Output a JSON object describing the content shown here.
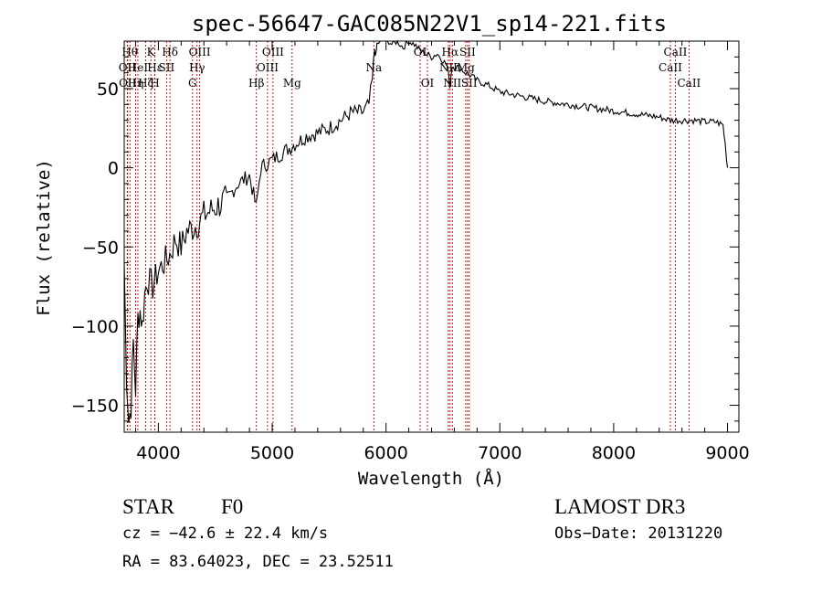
{
  "chart_data": {
    "type": "line",
    "title": "spec-56647-GAC085N22V1_sp14-221.fits",
    "xlabel": "Wavelength (Å)",
    "ylabel": "Flux (relative)",
    "xlim": [
      3700,
      9100
    ],
    "ylim": [
      -167,
      80
    ],
    "xticks": [
      4000,
      5000,
      6000,
      7000,
      8000,
      9000
    ],
    "xtick_labels": [
      "4000",
      "5000",
      "6000",
      "7000",
      "8000",
      "9000"
    ],
    "yticks": [
      -150,
      -100,
      -50,
      0,
      50
    ],
    "ytick_labels": [
      "−150",
      "−100",
      "−50",
      "0",
      "50"
    ],
    "series": [
      {
        "name": "spectrum",
        "x": [
          3700,
          3720,
          3740,
          3760,
          3780,
          3800,
          3820,
          3840,
          3860,
          3880,
          3900,
          3950,
          4000,
          4050,
          4100,
          4150,
          4200,
          4250,
          4300,
          4350,
          4400,
          4500,
          4600,
          4700,
          4800,
          4860,
          4900,
          5000,
          5100,
          5200,
          5300,
          5400,
          5500,
          5600,
          5700,
          5800,
          5850,
          5880,
          5900,
          5910,
          5920,
          5950,
          6000,
          6050,
          6100,
          6150,
          6200,
          6250,
          6300,
          6350,
          6400,
          6450,
          6500,
          6540,
          6560,
          6580,
          6600,
          6650,
          6700,
          6750,
          6800,
          6900,
          7000,
          7200,
          7400,
          7600,
          7800,
          8000,
          8200,
          8400,
          8500,
          8600,
          8700,
          8800,
          8900,
          8960,
          8980,
          9000
        ],
        "y": [
          -60,
          -130,
          -160,
          -150,
          -110,
          -140,
          -95,
          -90,
          -100,
          -80,
          -70,
          -75,
          -65,
          -60,
          -55,
          -45,
          -50,
          -40,
          -38,
          -35,
          -30,
          -25,
          -20,
          -10,
          -5,
          -25,
          0,
          5,
          10,
          15,
          20,
          22,
          25,
          30,
          35,
          35,
          40,
          55,
          75,
          70,
          78,
          80,
          82,
          78,
          80,
          76,
          80,
          78,
          74,
          72,
          70,
          72,
          68,
          64,
          52,
          64,
          64,
          63,
          60,
          58,
          55,
          52,
          48,
          45,
          42,
          40,
          38,
          36,
          34,
          32,
          30,
          30,
          30,
          29,
          29,
          27,
          15,
          0
        ]
      }
    ],
    "lines": [
      {
        "wl": 3727,
        "label": "OII",
        "row": 2
      },
      {
        "wl": 3730,
        "label": "OII",
        "row": 3
      },
      {
        "wl": 3750,
        "label": "Hθ",
        "row": 1
      },
      {
        "wl": 3800,
        "label": "Hη",
        "row": 3
      },
      {
        "wl": 3820,
        "label": "HeI",
        "row": 2
      },
      {
        "wl": 3889,
        "label": "Hζ",
        "row": 3
      },
      {
        "wl": 3934,
        "label": "K",
        "row": 1
      },
      {
        "wl": 3969,
        "label": "H",
        "row": 3
      },
      {
        "wl": 3970,
        "label": "Hε",
        "row": 2
      },
      {
        "wl": 4072,
        "label": "SII",
        "row": 2
      },
      {
        "wl": 4102,
        "label": "Hδ",
        "row": 1
      },
      {
        "wl": 4300,
        "label": "G",
        "row": 3
      },
      {
        "wl": 4340,
        "label": "Hγ",
        "row": 2
      },
      {
        "wl": 4363,
        "label": "OIII",
        "row": 1
      },
      {
        "wl": 4861,
        "label": "Hβ",
        "row": 3
      },
      {
        "wl": 4959,
        "label": "OIII",
        "row": 2
      },
      {
        "wl": 5007,
        "label": "OIII",
        "row": 1
      },
      {
        "wl": 5175,
        "label": "Mg",
        "row": 3
      },
      {
        "wl": 5893,
        "label": "Na",
        "row": 2
      },
      {
        "wl": 6300,
        "label": "OI",
        "row": 1
      },
      {
        "wl": 6364,
        "label": "OI",
        "row": 3
      },
      {
        "wl": 6548,
        "label": "NII",
        "row": 2
      },
      {
        "wl": 6563,
        "label": "Hα",
        "row": 1
      },
      {
        "wl": 6583,
        "label": "NII",
        "row": 3
      },
      {
        "wl": 6700,
        "label": "Mg",
        "row": 2
      },
      {
        "wl": 6716,
        "label": "SII",
        "row": 1
      },
      {
        "wl": 6731,
        "label": "SII",
        "row": 3
      },
      {
        "wl": 8498,
        "label": "CaII",
        "row": 2
      },
      {
        "wl": 8542,
        "label": "CaII",
        "row": 1
      },
      {
        "wl": 8662,
        "label": "CaII",
        "row": 3
      }
    ]
  },
  "info": {
    "class_label": "STAR",
    "subclass": "F0",
    "survey": "LAMOST DR3",
    "cz": "cz = −42.6 ± 22.4 km/s",
    "obs_date": "Obs−Date: 20131220",
    "coords": "RA =  83.64023, DEC =  23.52511"
  },
  "colors": {
    "line_marker": "#cc0000",
    "spectrum": "#000000",
    "axis": "#000000"
  }
}
